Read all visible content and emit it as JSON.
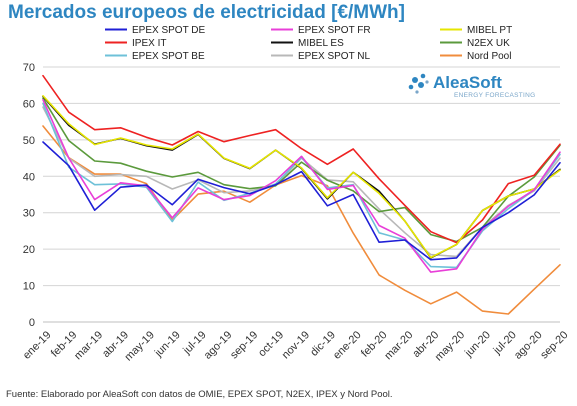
{
  "chart_data": {
    "type": "line",
    "title": "Mercados europeos de electricidad [€/MWh]",
    "xlabel": "",
    "ylabel": "",
    "ylim": [
      0,
      70
    ],
    "yticks": [
      0,
      10,
      20,
      30,
      40,
      50,
      60,
      70
    ],
    "grid": true,
    "legend_position": "top",
    "categories": [
      "ene-19",
      "feb-19",
      "mar-19",
      "abr-19",
      "may-19",
      "jun-19",
      "jul-19",
      "ago-19",
      "sep-19",
      "oct-19",
      "nov-19",
      "dic-19",
      "ene-20",
      "feb-20",
      "mar-20",
      "abr-20",
      "may-20",
      "jun-20",
      "jul-20",
      "ago-20",
      "sep-20"
    ],
    "series": [
      {
        "name": "EPEX SPOT DE",
        "color": "#1f1fd6",
        "values": [
          49.4,
          42.9,
          30.7,
          37.0,
          37.6,
          32.2,
          39.2,
          36.9,
          35.2,
          37.7,
          41.3,
          31.9,
          35.0,
          21.9,
          22.5,
          17.1,
          17.6,
          26.0,
          30.0,
          34.9,
          43.7
        ]
      },
      {
        "name": "EPEX SPOT FR",
        "color": "#e83fd8",
        "values": [
          61.0,
          45.0,
          33.6,
          38.2,
          37.4,
          28.6,
          36.8,
          33.6,
          34.7,
          38.8,
          45.5,
          36.4,
          37.5,
          26.5,
          23.0,
          13.7,
          14.6,
          25.5,
          31.8,
          36.3,
          46.6
        ]
      },
      {
        "name": "MIBEL PT",
        "color": "#e6e600",
        "values": [
          62.1,
          54.4,
          48.7,
          50.5,
          48.6,
          47.5,
          51.6,
          45.0,
          42.2,
          47.2,
          42.3,
          34.1,
          41.1,
          35.3,
          27.7,
          17.7,
          21.3,
          30.6,
          34.6,
          36.5,
          41.7
        ]
      },
      {
        "name": "IPEX IT",
        "color": "#ee2222",
        "values": [
          67.6,
          57.6,
          52.8,
          53.3,
          50.7,
          48.6,
          52.3,
          49.5,
          51.2,
          52.8,
          47.6,
          43.3,
          47.5,
          39.3,
          32.0,
          24.8,
          21.8,
          28.0,
          38.0,
          40.3,
          48.8
        ]
      },
      {
        "name": "MIBEL ES",
        "color": "#111111",
        "values": [
          61.9,
          54.0,
          48.8,
          50.4,
          48.4,
          47.2,
          51.5,
          44.9,
          42.1,
          47.2,
          42.2,
          33.8,
          41.1,
          35.9,
          27.7,
          17.6,
          21.3,
          30.6,
          34.6,
          36.5,
          41.9
        ]
      },
      {
        "name": "N2EX UK",
        "color": "#5b9a3c",
        "values": [
          61.4,
          49.8,
          44.2,
          43.6,
          41.4,
          39.8,
          41.1,
          37.7,
          36.6,
          37.4,
          43.9,
          38.9,
          36.0,
          30.3,
          31.4,
          24.0,
          22.1,
          26.0,
          34.5,
          39.8,
          48.5
        ]
      },
      {
        "name": "EPEX SPOT BE",
        "color": "#6ec1d8",
        "values": [
          60.0,
          42.5,
          37.7,
          37.9,
          37.0,
          27.6,
          38.4,
          33.4,
          35.3,
          37.9,
          45.2,
          36.8,
          37.7,
          24.5,
          22.5,
          15.2,
          15.0,
          25.0,
          31.1,
          36.3,
          46.0
        ]
      },
      {
        "name": "EPEX SPOT NL",
        "color": "#b8b8b8",
        "values": [
          59.0,
          45.0,
          40.0,
          40.5,
          40.0,
          36.5,
          39.0,
          35.5,
          36.0,
          37.5,
          45.0,
          39.0,
          38.5,
          31.0,
          24.5,
          18.5,
          18.0,
          26.0,
          32.0,
          36.0,
          45.0
        ]
      },
      {
        "name": "Nord Pool",
        "color": "#f08c3c",
        "values": [
          53.8,
          45.1,
          40.6,
          40.6,
          38.0,
          28.0,
          35.1,
          35.9,
          32.9,
          37.6,
          40.2,
          37.4,
          24.4,
          12.9,
          8.7,
          5.0,
          8.2,
          3.0,
          2.2,
          9.0,
          15.7
        ]
      }
    ]
  },
  "footer": {
    "source": "Fuente: Elaborado por AleaSoft con datos de OMIE, EPEX SPOT, N2EX, IPEX y Nord Pool."
  },
  "logo": {
    "name": "AleaSoft",
    "tagline": "ENERGY FORECASTING"
  },
  "colors": {
    "title": "#2e86c1",
    "grid": "#d4d4d4"
  }
}
